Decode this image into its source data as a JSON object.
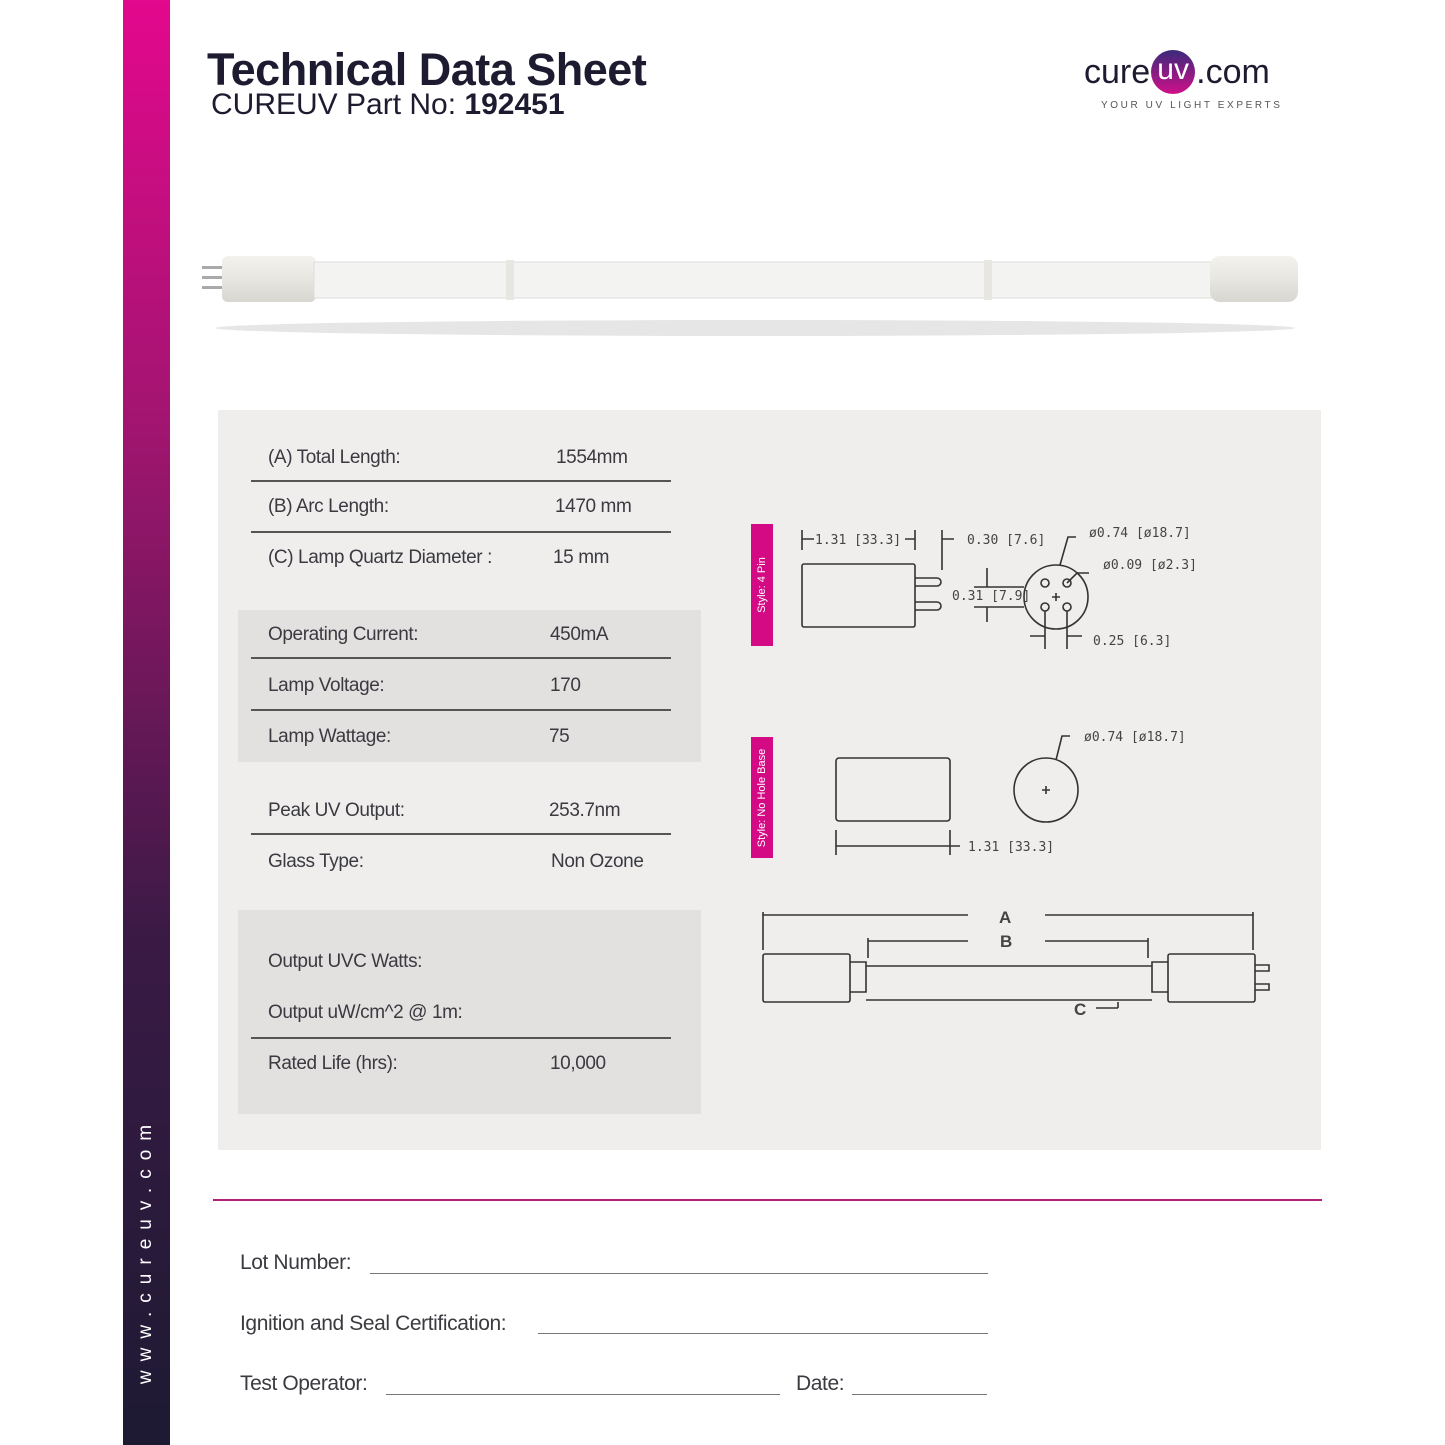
{
  "sidebar": {
    "website": "www.cureuv.com"
  },
  "header": {
    "title": "Technical Data Sheet",
    "part_label": "CUREUV Part No:",
    "part_number": "192451"
  },
  "logo": {
    "pre": "cure",
    "mid": "uv",
    "post": ".com",
    "tagline": "YOUR UV LIGHT EXPERTS"
  },
  "specs": [
    {
      "label": "(A) Total Length:",
      "value": "1554mm"
    },
    {
      "label": "(B) Arc Length:",
      "value": "1470 mm"
    },
    {
      "label": "(C) Lamp Quartz Diameter :",
      "value": "15 mm"
    },
    {
      "label": "Operating Current:",
      "value": "450mA"
    },
    {
      "label": "Lamp Voltage:",
      "value": "170"
    },
    {
      "label": "Lamp Wattage:",
      "value": "75"
    },
    {
      "label": "Peak UV Output:",
      "value": "253.7nm"
    },
    {
      "label": "Glass Type:",
      "value": "Non Ozone"
    },
    {
      "label": "Output UVC Watts:",
      "value": ""
    },
    {
      "label": "Output uW/cm^2 @ 1m:",
      "value": ""
    },
    {
      "label": "Rated Life (hrs):",
      "value": "10,000"
    }
  ],
  "diagrams": {
    "style1": "Style: 4 Pin",
    "style2": "Style: No Hole Base",
    "d1": "1.31 [33.3]",
    "d2": "0.30 [7.6]",
    "d3": "ø0.74 [ø18.7]",
    "d4": "ø0.09 [ø2.3]",
    "d5": "0.31 [7.9]",
    "d6": "0.25 [6.3]",
    "d7": "ø0.74 [ø18.7]",
    "d8": "1.31 [33.3]",
    "a": "A",
    "b": "B",
    "c": "C"
  },
  "form": {
    "lot": "Lot Number:",
    "ignition": "Ignition and Seal Certification:",
    "operator": "Test Operator:",
    "date": "Date:"
  }
}
